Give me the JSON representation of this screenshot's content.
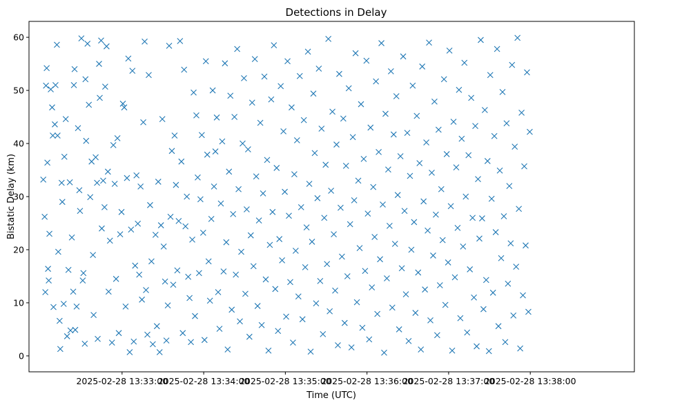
{
  "chart_data": {
    "type": "scatter",
    "title": "Detections in Delay",
    "xlabel": "Time (UTC)",
    "ylabel": "Bistatic Delay (km)",
    "marker": "x",
    "color": "#1f77b4",
    "grid": false,
    "x_unit": "seconds after 2025-02-28 13:33:00",
    "xlim": [
      -68.4,
      376.5
    ],
    "ylim": [
      -3,
      63
    ],
    "x_ticks": [
      {
        "t": 0,
        "label": "2025-02-28 13:33:00"
      },
      {
        "t": 60,
        "label": "2025-02-28 13:34:00"
      },
      {
        "t": 120,
        "label": "2025-02-28 13:35:00"
      },
      {
        "t": 180,
        "label": "2025-02-28 13:36:00"
      },
      {
        "t": 240,
        "label": "2025-02-28 13:37:00"
      },
      {
        "t": 300,
        "label": "2025-02-28 13:38:00"
      }
    ],
    "y_ticks": [
      {
        "v": 0,
        "label": "0"
      },
      {
        "v": 10,
        "label": "10"
      },
      {
        "v": 20,
        "label": "20"
      },
      {
        "v": 30,
        "label": "30"
      },
      {
        "v": 40,
        "label": "40"
      },
      {
        "v": 50,
        "label": "50"
      },
      {
        "v": 60,
        "label": "60"
      }
    ],
    "points": [
      [
        -57.9,
        33.2
      ],
      [
        -56.9,
        26.2
      ],
      [
        -56.4,
        12.0
      ],
      [
        -55.9,
        50.9
      ],
      [
        -55.4,
        54.2
      ],
      [
        -54.9,
        36.4
      ],
      [
        -54.4,
        16.4
      ],
      [
        -53.9,
        14.2
      ],
      [
        -53.4,
        23.0
      ],
      [
        -52.4,
        50.2
      ],
      [
        -51.4,
        46.8
      ],
      [
        -50.9,
        41.5
      ],
      [
        -50.4,
        9.2
      ],
      [
        -49.4,
        43.6
      ],
      [
        -48.9,
        51.0
      ],
      [
        -47.9,
        58.6
      ],
      [
        -47.4,
        41.5
      ],
      [
        -46.9,
        19.6
      ],
      [
        -45.9,
        6.6
      ],
      [
        -45.4,
        1.3
      ],
      [
        -44.4,
        32.6
      ],
      [
        -43.9,
        29.0
      ],
      [
        -42.9,
        9.8
      ],
      [
        -42.4,
        37.5
      ],
      [
        -41.4,
        44.6
      ],
      [
        -40.4,
        3.7
      ],
      [
        -39.4,
        16.2
      ],
      [
        -38.4,
        32.7
      ],
      [
        -37.9,
        4.8
      ],
      [
        -36.9,
        22.3
      ],
      [
        -35.9,
        12.1
      ],
      [
        -35.4,
        51.0
      ],
      [
        -34.9,
        54.0
      ],
      [
        -34.4,
        4.9
      ],
      [
        -33.4,
        9.3
      ],
      [
        -32.4,
        42.9
      ],
      [
        -31.4,
        31.2
      ],
      [
        -30.9,
        27.3
      ],
      [
        -29.9,
        59.8
      ],
      [
        -28.9,
        14.2
      ],
      [
        -28.4,
        15.6
      ],
      [
        -27.4,
        2.3
      ],
      [
        -26.4,
        40.5
      ],
      [
        -26.9,
        52.1
      ],
      [
        -25.4,
        58.8
      ],
      [
        -24.4,
        47.3
      ],
      [
        -23.4,
        29.9
      ],
      [
        -22.4,
        36.6
      ],
      [
        -21.4,
        19.0
      ],
      [
        -20.9,
        7.7
      ],
      [
        -19.4,
        37.4
      ],
      [
        -18.4,
        32.6
      ],
      [
        -17.9,
        3.2
      ],
      [
        -16.9,
        55.0
      ],
      [
        -16.4,
        48.6
      ],
      [
        -15.4,
        59.4
      ],
      [
        -14.9,
        24.0
      ],
      [
        -13.9,
        33.0
      ],
      [
        -12.9,
        28.0
      ],
      [
        -12.4,
        50.7
      ],
      [
        -11.4,
        58.3
      ],
      [
        -10.4,
        34.7
      ],
      [
        -9.9,
        12.1
      ],
      [
        -8.9,
        21.7
      ],
      [
        -7.4,
        2.5
      ],
      [
        -6.4,
        39.7
      ],
      [
        -5.4,
        32.4
      ],
      [
        -4.4,
        14.5
      ],
      [
        -3.4,
        41.0
      ],
      [
        -2.4,
        4.3
      ],
      [
        -1.4,
        22.9
      ],
      [
        -0.4,
        27.1
      ],
      [
        0.6,
        47.5
      ],
      [
        1.6,
        46.8
      ],
      [
        2.6,
        9.3
      ],
      [
        3.6,
        33.5
      ],
      [
        4.6,
        56.0
      ],
      [
        5.6,
        0.7
      ],
      [
        6.6,
        23.8
      ],
      [
        7.6,
        53.7
      ],
      [
        8.6,
        2.7
      ],
      [
        9.6,
        17.0
      ],
      [
        10.6,
        34.0
      ],
      [
        11.6,
        24.9
      ],
      [
        12.6,
        15.3
      ],
      [
        13.6,
        31.9
      ],
      [
        14.6,
        10.6
      ],
      [
        15.6,
        44.0
      ],
      [
        16.6,
        59.2
      ],
      [
        17.6,
        12.4
      ],
      [
        18.6,
        4.0
      ],
      [
        19.6,
        52.9
      ],
      [
        20.6,
        28.4
      ],
      [
        21.6,
        17.8
      ],
      [
        22.6,
        2.2
      ],
      [
        24.6,
        22.8
      ],
      [
        25.6,
        5.6
      ],
      [
        26.6,
        32.8
      ],
      [
        27.6,
        0.7
      ],
      [
        28.6,
        24.6
      ],
      [
        29.6,
        44.6
      ],
      [
        30.6,
        20.6
      ],
      [
        31.6,
        14.0
      ],
      [
        32.6,
        2.9
      ],
      [
        33.6,
        9.5
      ],
      [
        34.6,
        58.4
      ],
      [
        35.6,
        26.2
      ],
      [
        36.6,
        38.6
      ],
      [
        37.6,
        13.4
      ],
      [
        38.6,
        41.5
      ],
      [
        39.6,
        32.2
      ],
      [
        40.6,
        16.1
      ],
      [
        41.6,
        25.4
      ],
      [
        42.6,
        59.3
      ],
      [
        43.6,
        36.6
      ],
      [
        44.6,
        4.3
      ],
      [
        45.6,
        53.9
      ],
      [
        46.6,
        24.4
      ],
      [
        47.6,
        30.0
      ],
      [
        48.6,
        14.9
      ],
      [
        49.6,
        10.9
      ],
      [
        50.6,
        2.6
      ],
      [
        51.6,
        21.9
      ],
      [
        52.6,
        49.6
      ],
      [
        53.6,
        7.5
      ],
      [
        54.6,
        45.3
      ],
      [
        55.6,
        33.6
      ],
      [
        56.6,
        15.6
      ],
      [
        57.6,
        29.5
      ],
      [
        58.6,
        41.6
      ],
      [
        59.6,
        23.2
      ],
      [
        60.6,
        3.0
      ],
      [
        61.6,
        55.5
      ],
      [
        62.6,
        37.9
      ],
      [
        63.6,
        17.8
      ],
      [
        64.6,
        10.4
      ],
      [
        65.6,
        25.8
      ],
      [
        66.6,
        50.0
      ],
      [
        67.6,
        31.9
      ],
      [
        68.6,
        38.5
      ],
      [
        69.6,
        44.9
      ],
      [
        70.6,
        12.0
      ],
      [
        71.6,
        5.1
      ],
      [
        72.6,
        28.7
      ],
      [
        73.6,
        40.4
      ],
      [
        74.6,
        15.9
      ],
      [
        75.6,
        55.1
      ],
      [
        76.6,
        21.4
      ],
      [
        77.6,
        1.2
      ],
      [
        78.6,
        34.7
      ],
      [
        79.6,
        49.0
      ],
      [
        80.6,
        8.7
      ],
      [
        81.6,
        26.7
      ],
      [
        82.6,
        45.0
      ],
      [
        83.6,
        15.3
      ],
      [
        84.6,
        57.8
      ],
      [
        85.6,
        31.4
      ],
      [
        86.6,
        6.5
      ],
      [
        87.6,
        19.6
      ],
      [
        88.6,
        40.0
      ],
      [
        89.6,
        52.3
      ],
      [
        90.6,
        11.7
      ],
      [
        91.6,
        27.6
      ],
      [
        92.6,
        38.9
      ],
      [
        93.6,
        3.6
      ],
      [
        94.6,
        22.7
      ],
      [
        95.6,
        47.7
      ],
      [
        96.6,
        16.9
      ],
      [
        97.6,
        55.9
      ],
      [
        98.6,
        33.8
      ],
      [
        99.6,
        9.4
      ],
      [
        100.6,
        25.5
      ],
      [
        101.6,
        43.9
      ],
      [
        102.6,
        5.8
      ],
      [
        103.6,
        30.6
      ],
      [
        104.6,
        52.6
      ],
      [
        105.6,
        14.4
      ],
      [
        106.6,
        36.9
      ],
      [
        107.6,
        1.0
      ],
      [
        108.6,
        20.9
      ],
      [
        109.6,
        48.3
      ],
      [
        110.6,
        27.1
      ],
      [
        111.6,
        58.5
      ],
      [
        112.6,
        12.6
      ],
      [
        113.6,
        35.4
      ],
      [
        114.6,
        4.7
      ],
      [
        115.6,
        22.0
      ],
      [
        116.6,
        50.8
      ],
      [
        117.6,
        18.0
      ],
      [
        118.6,
        42.3
      ],
      [
        119.6,
        30.9
      ],
      [
        120.6,
        7.4
      ],
      [
        121.6,
        55.5
      ],
      [
        122.6,
        26.4
      ],
      [
        123.6,
        13.9
      ],
      [
        124.6,
        46.8
      ],
      [
        125.6,
        2.5
      ],
      [
        126.6,
        34.2
      ],
      [
        127.6,
        19.8
      ],
      [
        128.6,
        40.6
      ],
      [
        129.6,
        11.2
      ],
      [
        130.6,
        52.7
      ],
      [
        131.6,
        28.0
      ],
      [
        132.6,
        6.9
      ],
      [
        133.6,
        44.4
      ],
      [
        134.6,
        16.7
      ],
      [
        135.6,
        24.2
      ],
      [
        136.6,
        57.3
      ],
      [
        137.6,
        32.4
      ],
      [
        138.6,
        0.8
      ],
      [
        139.6,
        21.5
      ],
      [
        140.6,
        49.4
      ],
      [
        141.6,
        38.2
      ],
      [
        142.6,
        9.9
      ],
      [
        143.6,
        29.7
      ],
      [
        144.6,
        54.1
      ],
      [
        145.6,
        14.1
      ],
      [
        146.6,
        42.8
      ],
      [
        147.6,
        4.1
      ],
      [
        148.6,
        26.0
      ],
      [
        149.6,
        36.0
      ],
      [
        150.6,
        17.3
      ],
      [
        151.6,
        59.7
      ],
      [
        152.6,
        8.4
      ],
      [
        153.6,
        31.1
      ],
      [
        154.6,
        46.0
      ],
      [
        155.6,
        22.9
      ],
      [
        156.6,
        12.3
      ],
      [
        157.6,
        39.8
      ],
      [
        158.6,
        2.0
      ],
      [
        159.6,
        53.1
      ],
      [
        160.6,
        27.9
      ],
      [
        161.6,
        18.7
      ],
      [
        162.6,
        44.7
      ],
      [
        163.6,
        6.2
      ],
      [
        164.6,
        35.8
      ],
      [
        165.6,
        15.0
      ],
      [
        166.6,
        50.4
      ],
      [
        167.6,
        24.8
      ],
      [
        168.6,
        1.6
      ],
      [
        169.6,
        41.2
      ],
      [
        170.6,
        29.3
      ],
      [
        171.6,
        57.0
      ],
      [
        172.6,
        10.1
      ],
      [
        173.6,
        33.0
      ],
      [
        174.6,
        20.3
      ],
      [
        175.6,
        47.4
      ],
      [
        176.6,
        5.3
      ],
      [
        177.6,
        37.1
      ],
      [
        178.6,
        16.0
      ],
      [
        179.6,
        55.6
      ],
      [
        180.6,
        26.8
      ],
      [
        181.6,
        3.1
      ],
      [
        182.6,
        43.0
      ],
      [
        183.6,
        12.9
      ],
      [
        184.6,
        31.8
      ],
      [
        185.6,
        22.4
      ],
      [
        186.6,
        51.7
      ],
      [
        187.6,
        7.9
      ],
      [
        188.6,
        38.4
      ],
      [
        189.6,
        18.2
      ],
      [
        190.6,
        58.9
      ],
      [
        191.6,
        28.5
      ],
      [
        192.6,
        0.6
      ],
      [
        193.6,
        45.6
      ],
      [
        194.6,
        14.6
      ],
      [
        195.6,
        35.1
      ],
      [
        196.6,
        24.5
      ],
      [
        197.6,
        53.6
      ],
      [
        198.6,
        9.1
      ],
      [
        199.6,
        41.7
      ],
      [
        200.6,
        21.1
      ],
      [
        201.6,
        48.9
      ],
      [
        202.6,
        30.3
      ],
      [
        203.6,
        5.0
      ],
      [
        204.6,
        37.6
      ],
      [
        205.6,
        16.5
      ],
      [
        206.6,
        56.4
      ],
      [
        207.6,
        27.3
      ],
      [
        208.6,
        11.6
      ],
      [
        209.6,
        42.0
      ],
      [
        210.6,
        2.8
      ],
      [
        211.6,
        33.9
      ],
      [
        212.6,
        20.0
      ],
      [
        213.6,
        50.9
      ],
      [
        214.6,
        25.2
      ],
      [
        215.6,
        8.1
      ],
      [
        216.6,
        45.2
      ],
      [
        217.6,
        15.7
      ],
      [
        218.6,
        36.3
      ],
      [
        219.6,
        1.2
      ],
      [
        220.6,
        54.5
      ],
      [
        221.6,
        29.1
      ],
      [
        222.6,
        12.5
      ],
      [
        223.6,
        40.2
      ],
      [
        224.6,
        23.6
      ],
      [
        225.6,
        59.0
      ],
      [
        226.6,
        6.7
      ],
      [
        227.6,
        34.5
      ],
      [
        228.6,
        18.9
      ],
      [
        229.6,
        47.9
      ],
      [
        230.6,
        26.6
      ],
      [
        231.6,
        3.9
      ],
      [
        232.6,
        42.6
      ],
      [
        233.6,
        13.3
      ],
      [
        234.6,
        31.4
      ],
      [
        235.6,
        21.8
      ],
      [
        236.6,
        52.1
      ],
      [
        237.6,
        9.6
      ],
      [
        238.6,
        38.0
      ],
      [
        239.6,
        17.6
      ],
      [
        240.6,
        57.5
      ],
      [
        241.6,
        28.2
      ],
      [
        242.6,
        1.0
      ],
      [
        243.6,
        44.1
      ],
      [
        244.6,
        14.8
      ],
      [
        245.6,
        35.5
      ],
      [
        246.6,
        24.1
      ],
      [
        247.6,
        50.1
      ],
      [
        248.6,
        7.1
      ],
      [
        249.6,
        40.9
      ],
      [
        250.6,
        20.6
      ],
      [
        251.6,
        55.2
      ],
      [
        252.6,
        30.0
      ],
      [
        253.6,
        4.4
      ],
      [
        254.6,
        37.8
      ],
      [
        255.6,
        16.3
      ],
      [
        256.6,
        48.6
      ],
      [
        257.6,
        26.0
      ],
      [
        258.6,
        11.0
      ],
      [
        259.6,
        43.3
      ],
      [
        260.6,
        1.8
      ],
      [
        261.6,
        33.3
      ],
      [
        262.6,
        22.1
      ],
      [
        263.6,
        59.5
      ],
      [
        264.6,
        25.9
      ],
      [
        265.6,
        8.8
      ],
      [
        266.6,
        46.3
      ],
      [
        267.6,
        14.3
      ],
      [
        268.6,
        36.7
      ],
      [
        269.6,
        0.9
      ],
      [
        270.6,
        52.9
      ],
      [
        271.6,
        29.6
      ],
      [
        272.6,
        11.9
      ],
      [
        273.6,
        41.4
      ],
      [
        274.6,
        23.3
      ],
      [
        275.6,
        57.8
      ],
      [
        276.6,
        5.6
      ],
      [
        277.6,
        34.9
      ],
      [
        278.6,
        18.4
      ],
      [
        279.6,
        49.7
      ],
      [
        280.6,
        26.3
      ],
      [
        281.6,
        2.6
      ],
      [
        282.6,
        43.8
      ],
      [
        283.6,
        13.6
      ],
      [
        284.6,
        32.0
      ],
      [
        285.6,
        21.2
      ],
      [
        286.6,
        54.8
      ],
      [
        287.6,
        7.6
      ],
      [
        288.6,
        39.4
      ],
      [
        289.6,
        16.8
      ],
      [
        290.6,
        59.9
      ],
      [
        291.6,
        27.7
      ],
      [
        292.6,
        1.4
      ],
      [
        293.6,
        45.8
      ],
      [
        294.6,
        11.4
      ],
      [
        295.6,
        35.7
      ],
      [
        296.6,
        20.8
      ],
      [
        297.6,
        53.4
      ],
      [
        298.6,
        8.3
      ],
      [
        299.6,
        42.2
      ]
    ]
  }
}
